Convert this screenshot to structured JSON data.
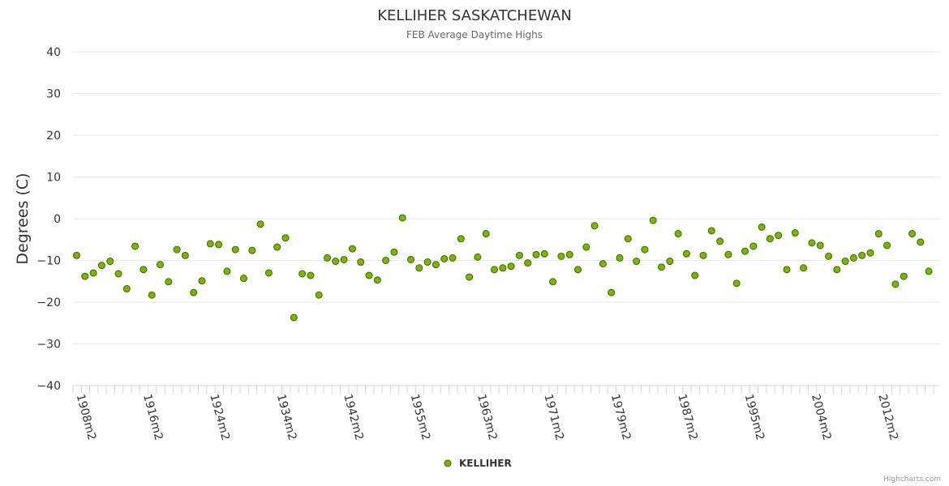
{
  "chart_data": {
    "type": "scatter",
    "title": "KELLIHER SASKATCHEWAN",
    "subtitle": "FEB Average Daytime Highs",
    "ylabel": "Degrees (C)",
    "xlabel": "",
    "ylim": [
      -40,
      40
    ],
    "yticks": [
      "40",
      "30",
      "20",
      "10",
      "0",
      "−10",
      "−20",
      "−30",
      "−40"
    ],
    "xtick_labels": [
      {
        "index": 0,
        "label": "1908m2"
      },
      {
        "index": 8,
        "label": "1916m2"
      },
      {
        "index": 16,
        "label": "1924m2"
      },
      {
        "index": 24,
        "label": "1934m2"
      },
      {
        "index": 32,
        "label": "1942m2"
      },
      {
        "index": 40,
        "label": "1955m2"
      },
      {
        "index": 48,
        "label": "1963m2"
      },
      {
        "index": 56,
        "label": "1971m2"
      },
      {
        "index": 64,
        "label": "1979m2"
      },
      {
        "index": 72,
        "label": "1987m2"
      },
      {
        "index": 80,
        "label": "1995m2"
      },
      {
        "index": 88,
        "label": "2004m2"
      },
      {
        "index": 96,
        "label": "2012m2"
      }
    ],
    "grid": true,
    "legend_position": "bottom-center",
    "series": [
      {
        "name": "KELLIHER",
        "color": "#7cb500",
        "edge_color": "#3d6600",
        "values": [
          -8.8,
          -13.8,
          -13.0,
          -11.2,
          -10.2,
          -13.2,
          -16.8,
          -6.6,
          -12.2,
          -18.3,
          -11.0,
          -15.1,
          -7.4,
          -8.8,
          -17.7,
          -14.9,
          -6.0,
          -6.2,
          -12.6,
          -7.4,
          -14.3,
          -7.6,
          -1.3,
          -13.0,
          -6.8,
          -4.6,
          -23.7,
          -13.2,
          -13.6,
          -18.3,
          -9.4,
          -10.2,
          -9.8,
          -7.2,
          -10.4,
          -13.6,
          -14.7,
          -10.0,
          -8.0,
          0.2,
          -9.8,
          -11.8,
          -10.4,
          -11.0,
          -9.6,
          -9.4,
          -4.8,
          -14.0,
          -9.2,
          -3.6,
          -12.2,
          -11.8,
          -11.4,
          -8.8,
          -10.6,
          -8.6,
          -8.4,
          -15.1,
          -9.0,
          -8.6,
          -12.2,
          -6.8,
          -1.7,
          -10.8,
          -17.7,
          -9.4,
          -4.8,
          -10.2,
          -7.4,
          -0.4,
          -11.6,
          -10.2,
          -3.6,
          -8.4,
          -13.6,
          -8.8,
          -2.9,
          -5.4,
          -8.6,
          -15.5,
          -7.8,
          -6.6,
          -2.0,
          -4.8,
          -4.0,
          -12.2,
          -3.4,
          -11.8,
          -5.8,
          -6.4,
          -9.0,
          -12.2,
          -10.2,
          -9.4,
          -8.8,
          -8.2,
          -3.6,
          -6.4,
          -15.7,
          -13.8,
          -3.6,
          -5.6,
          -12.6
        ]
      }
    ]
  },
  "credits": "Highcharts.com"
}
